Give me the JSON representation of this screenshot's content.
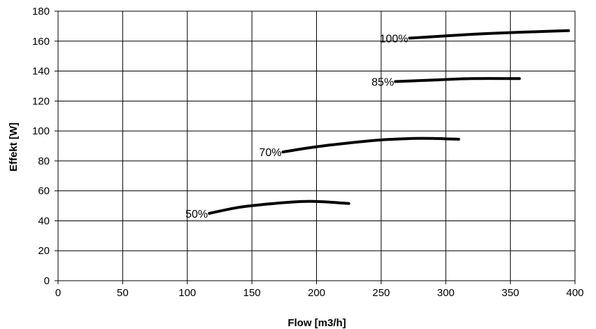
{
  "chart_data": {
    "type": "line",
    "title": "",
    "xlabel": "Flow [m3/h]",
    "ylabel": "Effekt [W]",
    "xlim": [
      0,
      400
    ],
    "ylim": [
      0,
      180
    ],
    "x_ticks": [
      0,
      50,
      100,
      150,
      200,
      250,
      300,
      350,
      400
    ],
    "y_ticks": [
      0,
      20,
      40,
      60,
      80,
      100,
      120,
      140,
      160,
      180
    ],
    "grid": true,
    "legend": "none",
    "line_color": "#000000",
    "series": [
      {
        "name": "50%",
        "x": [
          117,
          140,
          160,
          180,
          195,
          210,
          225
        ],
        "y": [
          45,
          49,
          51,
          52.5,
          53,
          52.5,
          51.5
        ]
      },
      {
        "name": "70%",
        "x": [
          174,
          200,
          225,
          250,
          275,
          290,
          310
        ],
        "y": [
          86,
          89.5,
          92,
          94,
          95,
          95,
          94.5
        ]
      },
      {
        "name": "85%",
        "x": [
          261,
          290,
          320,
          357
        ],
        "y": [
          133,
          134,
          135,
          135
        ]
      },
      {
        "name": "100%",
        "x": [
          272,
          300,
          330,
          360,
          395
        ],
        "y": [
          162,
          163.5,
          165,
          166,
          167
        ]
      }
    ]
  }
}
